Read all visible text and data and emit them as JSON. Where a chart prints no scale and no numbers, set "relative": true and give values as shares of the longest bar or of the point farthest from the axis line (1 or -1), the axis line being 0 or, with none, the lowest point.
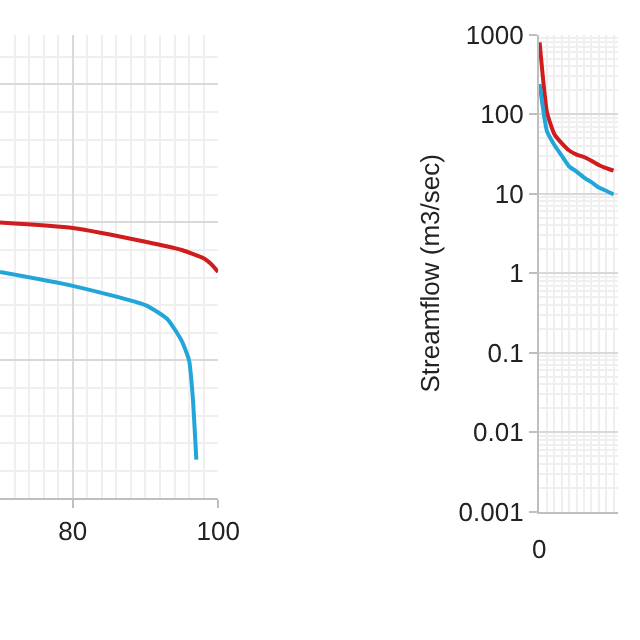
{
  "chart_data": [
    {
      "type": "line",
      "relative": true,
      "grid": true,
      "tick_labels": "x",
      "xlim": [
        70,
        100
      ],
      "xticks": [
        80,
        100
      ],
      "series": [
        {
          "color": "#d01c1c",
          "x": [
            70,
            80,
            90,
            95,
            98,
            99,
            100
          ],
          "values": [
            1,
            0.98,
            0.93,
            0.9,
            0.87,
            0.85,
            0.82
          ]
        },
        {
          "color": "#22a6d9",
          "x": [
            70,
            80,
            90,
            93,
            95,
            96,
            96.5,
            97
          ],
          "values": [
            0.82,
            0.77,
            0.7,
            0.65,
            0.57,
            0.5,
            0.37,
            0.14
          ]
        }
      ]
    },
    {
      "type": "line",
      "log": "y",
      "grid": true,
      "ylabel": "Streamflow (m3/sec)",
      "categories": [
        null,
        null,
        null,
        null,
        null,
        null,
        null,
        null,
        null,
        null,
        null
      ],
      "annotations": [
        "0"
      ],
      "ylim": [
        0.001,
        1000
      ],
      "yticks": [
        0.001,
        0.01,
        0.1,
        1,
        10,
        100,
        1000
      ],
      "series": [
        {
          "color": "#d01c1c",
          "values": [
            800,
            105,
            56,
            43,
            35,
            31,
            29,
            26,
            23,
            21,
            19.5
          ]
        },
        {
          "color": "#22a6d9",
          "values": [
            240,
            61,
            41,
            30,
            22,
            19,
            16,
            14,
            12,
            10.9,
            9.8
          ]
        }
      ]
    }
  ]
}
